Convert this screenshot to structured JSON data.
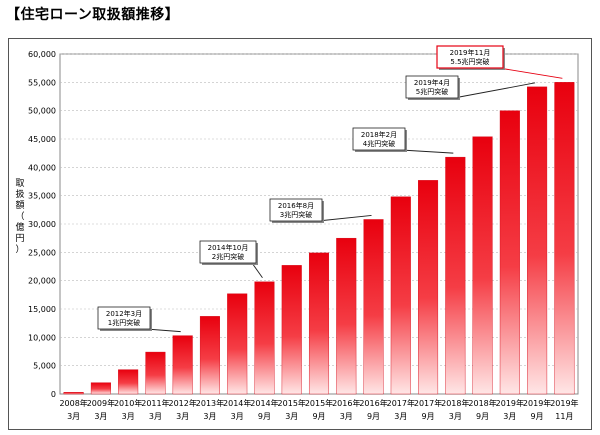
{
  "title": "【住宅ローン取扱額推移】",
  "chart_data": {
    "type": "bar",
    "ylabel": "取扱額（億円）",
    "ylim": [
      0,
      60000
    ],
    "yticks": [
      "0",
      "5,000",
      "10,000",
      "15,000",
      "20,000",
      "25,000",
      "30,000",
      "35,000",
      "40,000",
      "45,000",
      "50,000",
      "55,000",
      "60,000"
    ],
    "grid": true,
    "categories": [
      {
        "year": "2008年",
        "month": "3月"
      },
      {
        "year": "2009年",
        "month": "3月"
      },
      {
        "year": "2010年",
        "month": "3月"
      },
      {
        "year": "2011年",
        "month": "3月"
      },
      {
        "year": "2012年",
        "month": "3月"
      },
      {
        "year": "2013年",
        "month": "3月"
      },
      {
        "year": "2014年",
        "month": "3月"
      },
      {
        "year": "2014年",
        "month": "9月"
      },
      {
        "year": "2015年",
        "month": "3月"
      },
      {
        "year": "2015年",
        "month": "9月"
      },
      {
        "year": "2016年",
        "month": "3月"
      },
      {
        "year": "2016年",
        "month": "9月"
      },
      {
        "year": "2017年",
        "month": "3月"
      },
      {
        "year": "2017年",
        "month": "9月"
      },
      {
        "year": "2018年",
        "month": "3月"
      },
      {
        "year": "2018年",
        "month": "9月"
      },
      {
        "year": "2019年",
        "month": "3月"
      },
      {
        "year": "2019年",
        "month": "9月"
      },
      {
        "year": "2019年",
        "month": "11月"
      }
    ],
    "values": [
      300,
      2000,
      4300,
      7400,
      10300,
      13700,
      17700,
      19800,
      22700,
      24900,
      27500,
      30800,
      34800,
      37700,
      41800,
      45400,
      50000,
      54200,
      55000
    ],
    "annotations": [
      {
        "line1": "2012年3月",
        "line2": "1兆円突破",
        "bar": 4
      },
      {
        "line1": "2014年10月",
        "line2": "2兆円突破",
        "bar": 7
      },
      {
        "line1": "2016年8月",
        "line2": "3兆円突破",
        "bar": 11
      },
      {
        "line1": "2018年2月",
        "line2": "4兆円突破",
        "bar": 14
      },
      {
        "line1": "2019年4月",
        "line2": "5兆円突破",
        "bar": 17
      },
      {
        "line1": "2019年11月",
        "line2": "5.5兆円突破",
        "bar": 18
      }
    ],
    "colors": {
      "bar_top": "#e8000e",
      "bar_bottom": "#ffe6e6",
      "grid": "#bbbbbb",
      "highlight": "#e60012"
    }
  }
}
